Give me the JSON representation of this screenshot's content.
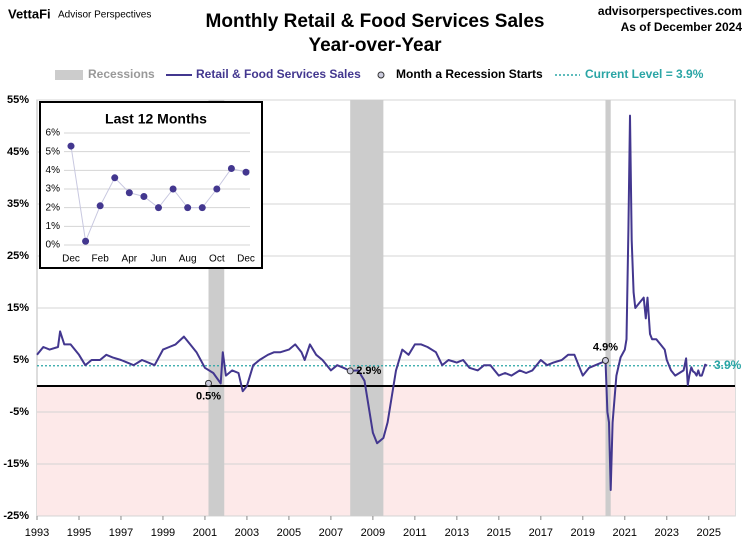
{
  "chart_data": [
    {
      "type": "line",
      "title": "Monthly Retail & Food Services Sales",
      "subtitle": "Year-over-Year",
      "brand": "VettaFi",
      "publisher": "Advisor Perspectives",
      "website": "advisorperspectives.com",
      "as_of": "As of December 2024",
      "xlim": [
        1993,
        2026.25
      ],
      "xticks": [
        1993,
        1995,
        1997,
        1999,
        2001,
        2003,
        2005,
        2007,
        2009,
        2011,
        2013,
        2015,
        2017,
        2019,
        2021,
        2023,
        2025
      ],
      "ylim": [
        -25,
        55
      ],
      "yticks": [
        {
          "value": -25,
          "label": "-25%"
        },
        {
          "value": -15,
          "label": "-15%"
        },
        {
          "value": -5,
          "label": "-5%"
        },
        {
          "value": 5,
          "label": "5%"
        },
        {
          "value": 15,
          "label": "15%"
        },
        {
          "value": 25,
          "label": "25%"
        },
        {
          "value": 35,
          "label": "35%"
        },
        {
          "value": 45,
          "label": "45%"
        },
        {
          "value": 55,
          "label": "55%"
        }
      ],
      "grid": true,
      "recessions": {
        "name": "Recessions",
        "color": "#cccccc",
        "periods": [
          [
            2001.17,
            2001.92
          ],
          [
            2007.92,
            2009.5
          ],
          [
            2020.08,
            2020.33
          ]
        ]
      },
      "series": [
        {
          "name": "Retail & Food Services Sales",
          "color": "#43378f",
          "x": [
            1993,
            1993.3,
            1993.6,
            1994,
            1994.1,
            1994.3,
            1994.6,
            1995,
            1995.3,
            1995.6,
            1996,
            1996.3,
            1996.6,
            1997,
            1997.3,
            1997.6,
            1998,
            1998.3,
            1998.6,
            1999,
            1999.3,
            1999.6,
            2000,
            2000.3,
            2000.6,
            2001,
            2001.4,
            2001.75,
            2001.85,
            2002,
            2002.3,
            2002.6,
            2002.8,
            2003,
            2003.3,
            2003.6,
            2004,
            2004.3,
            2004.6,
            2005,
            2005.3,
            2005.6,
            2005.75,
            2006,
            2006.3,
            2006.6,
            2007,
            2007.3,
            2007.6,
            2007.92,
            2008.3,
            2008.6,
            2008.8,
            2009,
            2009.2,
            2009.5,
            2009.7,
            2009.9,
            2010.1,
            2010.4,
            2010.7,
            2011,
            2011.3,
            2011.6,
            2012,
            2012.3,
            2012.6,
            2013,
            2013.3,
            2013.6,
            2014,
            2014.3,
            2014.6,
            2015,
            2015.3,
            2015.6,
            2016,
            2016.3,
            2016.6,
            2017,
            2017.3,
            2017.6,
            2018,
            2018.3,
            2018.6,
            2019,
            2019.3,
            2019.6,
            2019.9,
            2020.08,
            2020.17,
            2020.25,
            2020.33,
            2020.42,
            2020.6,
            2020.8,
            2021,
            2021.08,
            2021.17,
            2021.25,
            2021.33,
            2021.42,
            2021.5,
            2021.7,
            2021.9,
            2022,
            2022.08,
            2022.2,
            2022.3,
            2022.5,
            2022.7,
            2022.9,
            2023,
            2023.2,
            2023.4,
            2023.6,
            2023.8,
            2023.92,
            2024,
            2024.08,
            2024.17,
            2024.25,
            2024.33,
            2024.42,
            2024.5,
            2024.58,
            2024.67,
            2024.75,
            2024.83,
            2024.92
          ],
          "values": [
            6,
            7.5,
            7,
            7.5,
            10.5,
            8,
            8,
            6,
            4,
            5,
            5,
            6,
            5.5,
            5,
            4.5,
            4,
            5,
            4.5,
            4,
            7,
            7.5,
            8,
            9.5,
            8,
            6.5,
            3.5,
            2.5,
            0.5,
            6.5,
            2,
            3,
            2.5,
            -1,
            0,
            4,
            5,
            6,
            6.5,
            6.5,
            7,
            8,
            6.5,
            5,
            8,
            6,
            5,
            3,
            4,
            3.5,
            2.9,
            3,
            1,
            -4,
            -9,
            -11,
            -10,
            -7,
            -2,
            3,
            7,
            6,
            8,
            8,
            7.5,
            6.5,
            4,
            5,
            4.5,
            5,
            3.5,
            3,
            4,
            4,
            2,
            2.5,
            2,
            3,
            2.5,
            3,
            5,
            4,
            4.5,
            5,
            6,
            6,
            2,
            3.5,
            4,
            4.5,
            4.9,
            -5,
            -7,
            -20,
            -7,
            2,
            5.5,
            7,
            9,
            30,
            52,
            28,
            18,
            15,
            16,
            17,
            13,
            17,
            10,
            9,
            9,
            8,
            7,
            5,
            3,
            2,
            2.5,
            3,
            5.3,
            0.2,
            2.1,
            3.6,
            2.8,
            2.6,
            2.0,
            3.0,
            2.0,
            2.0,
            3.0,
            4.1,
            3.9
          ]
        }
      ],
      "recession_starts": {
        "name": "Month a Recession Starts",
        "x": [
          2001.17,
          2007.92,
          2020.08
        ],
        "values": [
          0.5,
          2.9,
          4.9
        ],
        "value_labels": [
          "0.5%",
          "2.9%",
          "4.9%"
        ]
      },
      "current_level": {
        "name": "Current Level = 3.9%",
        "value": 3.9,
        "value_label": "3.9%",
        "color": "#2aa5a5"
      }
    },
    {
      "type": "line",
      "title": "Last 12 Months",
      "color": "#43378f",
      "categories": [
        "Dec",
        null,
        "Feb",
        null,
        "Apr",
        null,
        "Jun",
        null,
        "Aug",
        null,
        "Oct",
        null,
        "Dec"
      ],
      "values": [
        5.3,
        0.2,
        2.1,
        3.6,
        2.8,
        2.6,
        2.0,
        3.0,
        2.0,
        2.0,
        3.0,
        4.1,
        3.9
      ],
      "ylim": [
        0,
        6
      ],
      "yticks": [
        {
          "value": 0,
          "label": "0%"
        },
        {
          "value": 1,
          "label": "1%"
        },
        {
          "value": 2,
          "label": "2%"
        },
        {
          "value": 3,
          "label": "3%"
        },
        {
          "value": 4,
          "label": "4%"
        },
        {
          "value": 5,
          "label": "5%"
        },
        {
          "value": 6,
          "label": "6%"
        }
      ],
      "grid": true
    }
  ]
}
